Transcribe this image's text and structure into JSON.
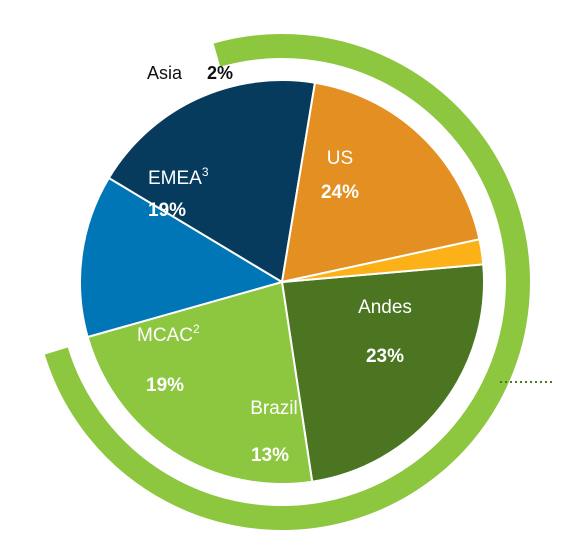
{
  "colors": {
    "US": "#4b7520",
    "Andes": "#8dc63f",
    "Brazil": "#0076b6",
    "MCAC": "#063b5e",
    "EMEA": "#e38f22",
    "Asia": "#fbb117",
    "outer_ring": "#8dc63f",
    "connector": "#4b7520"
  },
  "chart_data": {
    "type": "pie",
    "slices": [
      {
        "label": "US",
        "sup": "",
        "value": 24,
        "pct_text": "24%"
      },
      {
        "label": "Andes",
        "sup": "",
        "value": 23,
        "pct_text": "23%"
      },
      {
        "label": "Brazil",
        "sup": "",
        "value": 13,
        "pct_text": "13%"
      },
      {
        "label": "MCAC",
        "sup": "2",
        "value": 19,
        "pct_text": "19%"
      },
      {
        "label": "EMEA",
        "sup": "3",
        "value": 19,
        "pct_text": "19%"
      },
      {
        "label": "Asia",
        "sup": "",
        "value": 2,
        "pct_text": "2%"
      }
    ]
  }
}
